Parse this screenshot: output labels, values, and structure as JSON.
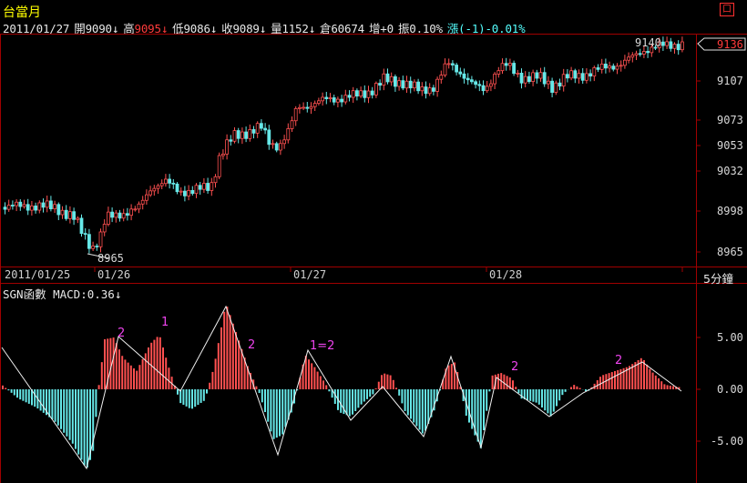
{
  "window": {
    "title": "台當月",
    "close_label": "口"
  },
  "quote": {
    "date": "2011/01/27",
    "open_label": "開",
    "open": "9090",
    "high_label": "高",
    "high": "9095",
    "low_label": "低",
    "low": "9086",
    "close_label": "收",
    "close": "9089",
    "volume_label": "量",
    "volume": "1152",
    "oi_label": "倉",
    "oi": "60674",
    "oi_change": "增+0",
    "amplitude": "振0.10%",
    "change": "漲(-1)-0.01%",
    "arrow": "↓"
  },
  "price_axis": {
    "ticks": [
      "9107",
      "9073",
      "9053",
      "9032",
      "8998",
      "8965"
    ],
    "current_price": "9136",
    "high_marker": "9140",
    "low_marker": "8965"
  },
  "date_axis": {
    "labels": [
      "2011/01/25",
      "01/26",
      "01/27",
      "01/28"
    ],
    "period": "5分鐘"
  },
  "indicator": {
    "title": "SGN函數 MACD:0.36",
    "arrow": "↓",
    "ticks": [
      "5.00",
      "0.00",
      "-5.00"
    ],
    "wave_labels": [
      "2",
      "1",
      "2",
      "1=2",
      "2",
      "2"
    ]
  },
  "colors": {
    "up": "#ff5050",
    "down": "#66e8e8",
    "frame": "#a00000",
    "title": "#ffff00",
    "wave_label": "#ee44ee"
  }
}
